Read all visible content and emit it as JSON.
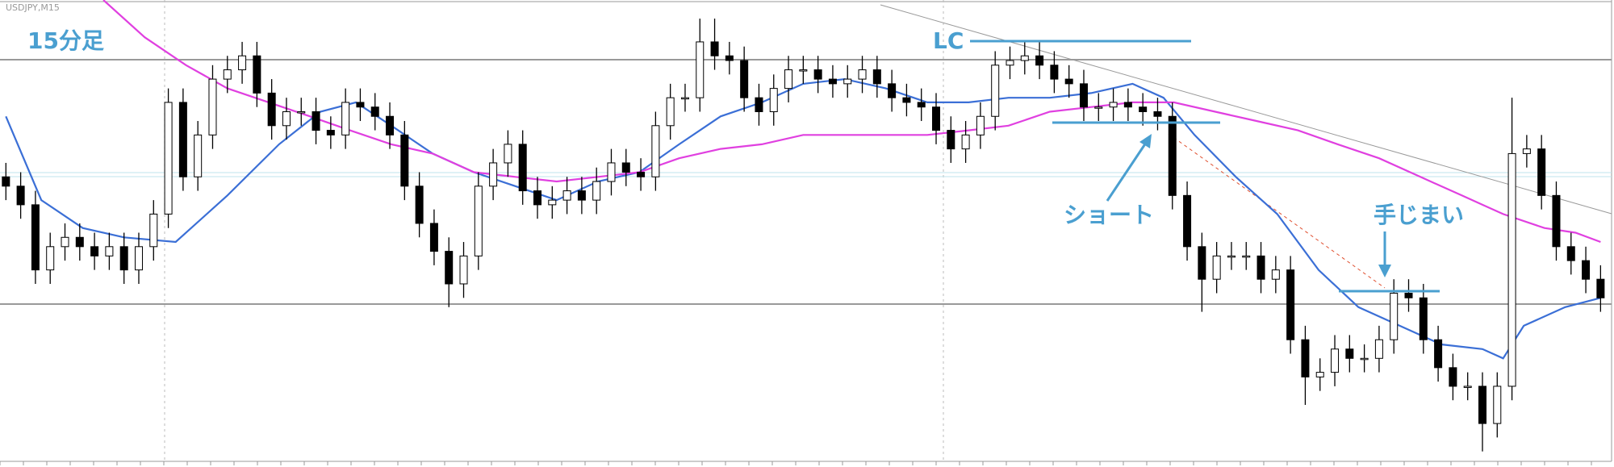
{
  "chart_data": {
    "type": "candlestick",
    "title": "USDJPY,M15",
    "annotations": [
      "15分足",
      "LC",
      "ショート",
      "手じまい"
    ],
    "up_color": "#ffffff",
    "down_color": "#000000",
    "open": [
      62,
      60,
      56,
      42,
      47,
      49,
      47,
      45,
      47,
      42,
      47,
      54,
      78,
      62,
      71,
      83,
      85,
      88,
      80,
      73,
      76,
      76,
      72,
      71,
      78,
      77,
      75,
      71,
      60,
      52,
      46,
      39,
      45,
      60,
      65,
      69,
      59,
      56,
      57,
      59,
      57,
      61,
      65,
      63,
      62,
      73,
      79,
      79,
      91,
      88,
      87,
      79,
      76,
      81,
      85,
      85,
      83,
      82,
      83,
      85,
      82,
      79,
      78,
      77,
      72,
      68,
      71,
      75,
      86,
      87,
      88,
      86,
      83,
      82,
      77,
      77,
      78,
      77,
      76,
      75,
      58,
      47,
      40,
      45,
      45,
      45,
      40,
      42,
      27,
      19,
      20,
      25,
      23,
      23,
      27,
      37,
      36,
      27,
      21,
      17,
      17,
      9,
      17,
      67,
      68,
      58,
      47,
      44,
      40
    ],
    "high": [
      65,
      63,
      59,
      50,
      52,
      52,
      50,
      50,
      50,
      50,
      57,
      81,
      81,
      74,
      86,
      88,
      91,
      91,
      83,
      79,
      79,
      79,
      75,
      81,
      81,
      80,
      78,
      74,
      63,
      55,
      49,
      48,
      63,
      68,
      72,
      72,
      62,
      60,
      62,
      62,
      64,
      68,
      68,
      66,
      76,
      82,
      82,
      96,
      96,
      91,
      90,
      82,
      84,
      88,
      88,
      88,
      86,
      86,
      88,
      88,
      85,
      82,
      81,
      80,
      75,
      74,
      78,
      89,
      90,
      91,
      91,
      89,
      86,
      85,
      80,
      81,
      81,
      80,
      79,
      78,
      61,
      50,
      48,
      48,
      48,
      48,
      45,
      45,
      30,
      23,
      28,
      28,
      26,
      30,
      40,
      40,
      39,
      30,
      24,
      20,
      20,
      20,
      79,
      71,
      71,
      61,
      50,
      47,
      43
    ],
    "low": [
      57,
      53,
      39,
      39,
      44,
      44,
      42,
      42,
      39,
      39,
      44,
      51,
      59,
      59,
      68,
      80,
      82,
      77,
      70,
      70,
      73,
      69,
      68,
      68,
      74,
      72,
      68,
      57,
      49,
      43,
      34,
      36,
      42,
      57,
      62,
      56,
      53,
      53,
      54,
      54,
      54,
      58,
      60,
      59,
      59,
      70,
      76,
      76,
      85,
      84,
      76,
      73,
      73,
      78,
      82,
      80,
      79,
      79,
      80,
      79,
      76,
      75,
      74,
      69,
      65,
      65,
      68,
      72,
      83,
      84,
      83,
      80,
      79,
      74,
      74,
      74,
      74,
      73,
      72,
      55,
      44,
      33,
      37,
      42,
      42,
      37,
      37,
      24,
      13,
      16,
      17,
      20,
      20,
      20,
      24,
      33,
      24,
      18,
      14,
      14,
      3,
      6,
      14,
      64,
      55,
      44,
      41,
      37,
      33
    ],
    "close": [
      60,
      56,
      42,
      47,
      49,
      47,
      45,
      47,
      42,
      47,
      54,
      78,
      62,
      71,
      83,
      85,
      88,
      80,
      73,
      76,
      76,
      72,
      71,
      78,
      77,
      75,
      71,
      60,
      52,
      46,
      39,
      45,
      60,
      65,
      69,
      59,
      56,
      57,
      59,
      57,
      61,
      65,
      63,
      62,
      73,
      79,
      79,
      91,
      88,
      87,
      79,
      76,
      81,
      85,
      85,
      83,
      82,
      83,
      85,
      82,
      79,
      78,
      77,
      72,
      68,
      71,
      75,
      86,
      87,
      88,
      86,
      83,
      82,
      77,
      77,
      78,
      77,
      76,
      75,
      58,
      47,
      40,
      45,
      45,
      45,
      40,
      42,
      27,
      19,
      20,
      25,
      23,
      23,
      27,
      37,
      36,
      27,
      21,
      17,
      17,
      9,
      17,
      67,
      68,
      58,
      47,
      44,
      40,
      36
    ],
    "lines": [
      {
        "color": "#3b6fd6",
        "x": [
          0,
          2.4,
          5.2,
          8,
          11.5,
          15,
          18.5,
          21.3,
          23.7,
          26.1,
          28.9,
          31.7,
          34.5,
          37.3,
          40.1,
          42.9,
          45.6,
          48.4,
          51.2,
          54,
          56.8,
          59.6,
          62.4,
          65.2,
          67.9,
          70.7,
          73.5,
          76.3,
          78.4,
          80.5,
          83.3,
          86.1,
          88.9,
          91.6,
          94.4,
          97.2,
          100,
          101.4,
          102.8,
          105.6,
          108
        ],
        "values": [
          75,
          57,
          51,
          49,
          48,
          58,
          69,
          76,
          78,
          73,
          67,
          63,
          60,
          57,
          61,
          63,
          69,
          75,
          78,
          82,
          83,
          81,
          78,
          78,
          79,
          79,
          80,
          82,
          79,
          71,
          62,
          54,
          42,
          34,
          30,
          26,
          25,
          23,
          30,
          34,
          36
        ]
      },
      {
        "color": "#e040e0",
        "x": [
          6.6,
          9.4,
          12.2,
          15,
          17.8,
          20.6,
          23.3,
          26.1,
          28.9,
          31.7,
          34.5,
          37.3,
          40.1,
          42.9,
          45.6,
          48.4,
          51.2,
          54,
          56.8,
          59.6,
          62.4,
          65.2,
          67.9,
          70.7,
          73.5,
          76.3,
          79.1,
          81.9,
          84.7,
          87.5,
          90.2,
          93,
          95.8,
          98.6,
          101.4,
          104.2,
          106.3,
          108
        ],
        "values": [
          100,
          92,
          86,
          81,
          78,
          75,
          72,
          69,
          67,
          63,
          62,
          61,
          62,
          63,
          66,
          68,
          69,
          71,
          71,
          71,
          71,
          72,
          73,
          76,
          77,
          78,
          78,
          76,
          74,
          72,
          69,
          66,
          62,
          58,
          54,
          51,
          50,
          48
        ]
      }
    ],
    "xlim": [
      -0.4,
      108.8
    ],
    "ylim": [
      0,
      100
    ]
  }
}
